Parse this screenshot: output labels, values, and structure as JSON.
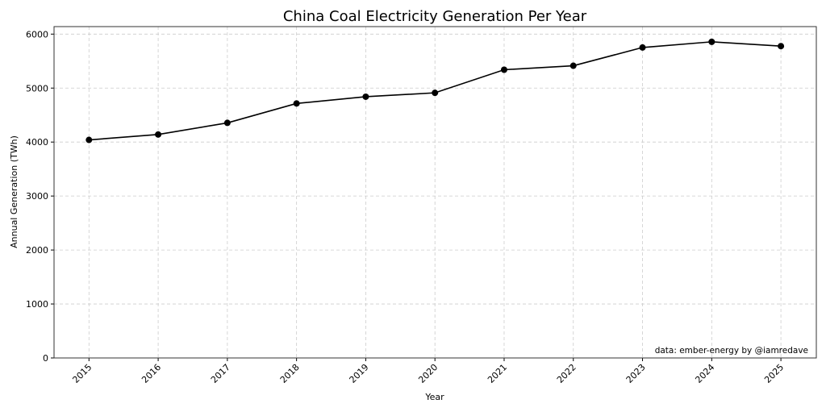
{
  "chart_data": {
    "type": "line",
    "title": "China Coal Electricity Generation Per Year",
    "xlabel": "Year",
    "ylabel": "Annual Generation (TWh)",
    "x": [
      2015,
      2016,
      2017,
      2018,
      2019,
      2020,
      2021,
      2022,
      2023,
      2024,
      2025
    ],
    "series": [
      {
        "values": [
          4040,
          4140,
          4355,
          4715,
          4840,
          4912,
          5340,
          5414,
          5752,
          5857,
          5777
        ],
        "color": "#000000",
        "marker": "circle"
      }
    ],
    "ylim": [
      0,
      6150
    ],
    "yticks": [
      0,
      1000,
      2000,
      3000,
      4000,
      5000,
      6000
    ],
    "xtick_rotation": 45,
    "grid": true,
    "grid_style": "dashed",
    "grid_color": "#cccccc",
    "annotation": "data: ember-energy by @iamredave",
    "annotation_placement": "bottom-right"
  }
}
